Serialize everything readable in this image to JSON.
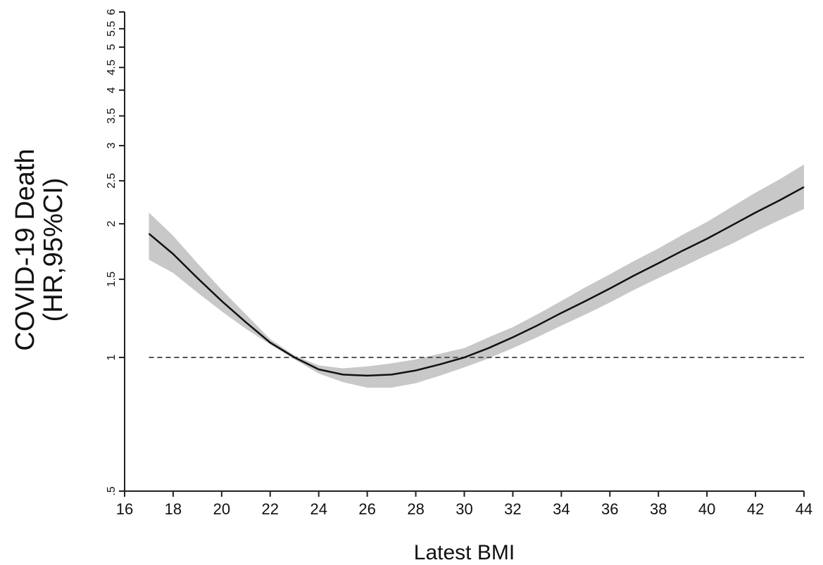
{
  "chart_data": {
    "type": "line",
    "xlabel": "Latest BMI",
    "ylabel_lines": [
      "COVID-19 Death",
      "(HR,95%CI)"
    ],
    "y_scale": "log",
    "xlim": [
      16,
      44
    ],
    "ylim": [
      0.5,
      6
    ],
    "x_ticks": [
      16,
      18,
      20,
      22,
      24,
      26,
      28,
      30,
      32,
      34,
      36,
      38,
      40,
      42,
      44
    ],
    "y_ticks": [
      {
        "value": 0.5,
        "label": ".5"
      },
      {
        "value": 1,
        "label": "1"
      },
      {
        "value": 1.5,
        "label": "1.5"
      },
      {
        "value": 2,
        "label": "2"
      },
      {
        "value": 2.5,
        "label": "2.5"
      },
      {
        "value": 3,
        "label": "3"
      },
      {
        "value": 3.5,
        "label": "3.5"
      },
      {
        "value": 4,
        "label": "4"
      },
      {
        "value": 4.5,
        "label": "4.5"
      },
      {
        "value": 5,
        "label": "5"
      },
      {
        "value": 5.5,
        "label": "5.5"
      },
      {
        "value": 6,
        "label": "6"
      }
    ],
    "reference_line": {
      "y": 1,
      "style": "dashed",
      "x_from": 17,
      "x_to": 44
    },
    "series": [
      {
        "x": [
          17,
          18,
          19,
          20,
          21,
          22,
          23,
          24,
          25,
          26,
          27,
          28,
          29,
          30,
          31,
          32,
          33,
          34,
          35,
          36,
          37,
          38,
          39,
          40,
          41,
          42,
          43,
          44
        ],
        "y": [
          1.9,
          1.71,
          1.51,
          1.34,
          1.2,
          1.08,
          1.0,
          0.94,
          0.915,
          0.91,
          0.915,
          0.935,
          0.965,
          1.0,
          1.05,
          1.11,
          1.18,
          1.26,
          1.34,
          1.43,
          1.53,
          1.63,
          1.74,
          1.85,
          1.98,
          2.12,
          2.26,
          2.42
        ],
        "lower": [
          1.66,
          1.55,
          1.4,
          1.27,
          1.16,
          1.07,
          0.99,
          0.92,
          0.88,
          0.855,
          0.855,
          0.875,
          0.91,
          0.95,
          0.995,
          1.05,
          1.11,
          1.18,
          1.25,
          1.33,
          1.42,
          1.51,
          1.6,
          1.7,
          1.8,
          1.92,
          2.04,
          2.16
        ],
        "upper": [
          2.12,
          1.88,
          1.63,
          1.42,
          1.25,
          1.1,
          1.01,
          0.96,
          0.945,
          0.955,
          0.97,
          0.99,
          1.02,
          1.05,
          1.11,
          1.17,
          1.25,
          1.34,
          1.44,
          1.54,
          1.65,
          1.76,
          1.89,
          2.02,
          2.18,
          2.35,
          2.52,
          2.72
        ]
      }
    ],
    "colors": {
      "line": "#111111",
      "band": "#c8c8c8",
      "axis": "#222222",
      "reference": "#555555"
    },
    "grid": false
  }
}
